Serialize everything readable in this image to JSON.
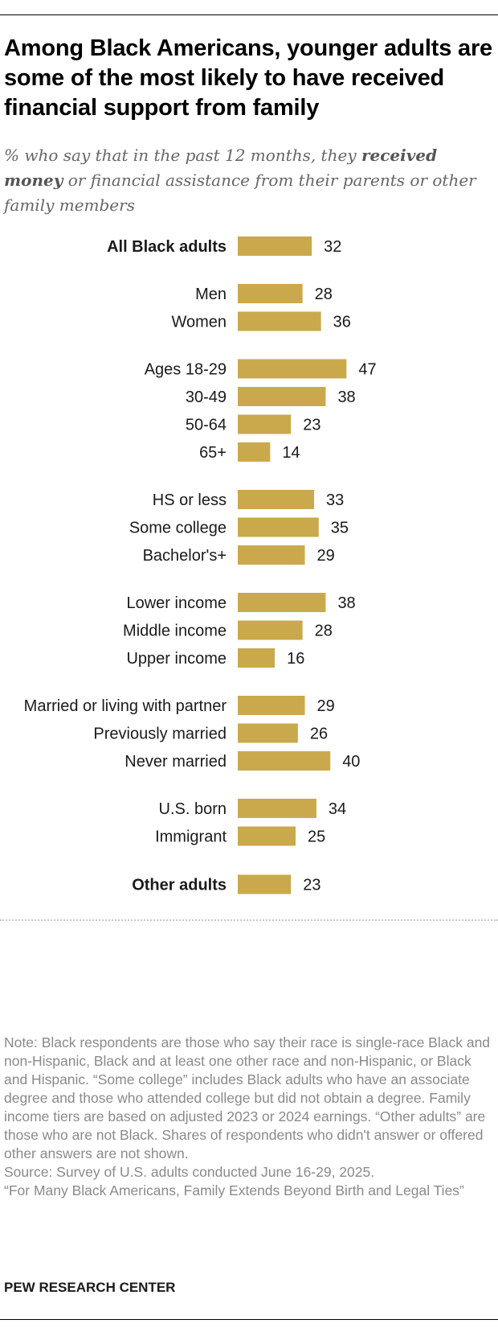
{
  "title": "Among Black Americans, younger adults are some of the most likely to have received financial support from family",
  "subtitle": {
    "prefix": "% who say that in the past 12 months, they ",
    "emphasis": "received money",
    "suffix": " or financial assistance from their parents or other family members"
  },
  "colors": {
    "bar": "#C9A94B",
    "text": "#1a1a1a",
    "note": "#8a8a8a"
  },
  "chart_data": {
    "type": "bar",
    "orientation": "horizontal",
    "unit": "%",
    "xlim": [
      0,
      100
    ],
    "grid": false,
    "groups": [
      {
        "items": [
          {
            "label": "All Black adults",
            "value": 32,
            "bold": true
          }
        ]
      },
      {
        "items": [
          {
            "label": "Men",
            "value": 28
          },
          {
            "label": "Women",
            "value": 36
          }
        ]
      },
      {
        "items": [
          {
            "label": "Ages 18-29",
            "value": 47
          },
          {
            "label": "30-49",
            "value": 38
          },
          {
            "label": "50-64",
            "value": 23
          },
          {
            "label": "65+",
            "value": 14
          }
        ]
      },
      {
        "items": [
          {
            "label": "HS or less",
            "value": 33
          },
          {
            "label": "Some college",
            "value": 35
          },
          {
            "label": "Bachelor's+",
            "value": 29
          }
        ]
      },
      {
        "items": [
          {
            "label": "Lower income",
            "value": 38
          },
          {
            "label": "Middle income",
            "value": 28
          },
          {
            "label": "Upper income",
            "value": 16
          }
        ]
      },
      {
        "items": [
          {
            "label": "Married or living with partner",
            "value": 29
          },
          {
            "label": "Previously married",
            "value": 26
          },
          {
            "label": "Never married",
            "value": 40
          }
        ]
      },
      {
        "items": [
          {
            "label": "U.S. born",
            "value": 34
          },
          {
            "label": "Immigrant",
            "value": 25
          }
        ]
      },
      {
        "items": [
          {
            "label": "Other adults",
            "value": 23,
            "bold": true
          }
        ]
      }
    ]
  },
  "notes": {
    "note": "Note: Black respondents are those who say their race is single-race Black and non-Hispanic, Black and at least one other race and non-Hispanic, or Black and Hispanic. “Some college” includes Black adults who have an associate degree and those who attended college but did not obtain a degree. Family income tiers are based on adjusted 2023 or 2024 earnings. “Other adults” are those who are not Black. Shares of respondents who didn't answer or offered other answers are not shown.",
    "source": "Source: Survey of U.S. adults conducted June 16-29, 2025.",
    "report": "“For Many Black Americans, Family Extends Beyond Birth and Legal Ties”"
  },
  "brand": "PEW RESEARCH CENTER"
}
